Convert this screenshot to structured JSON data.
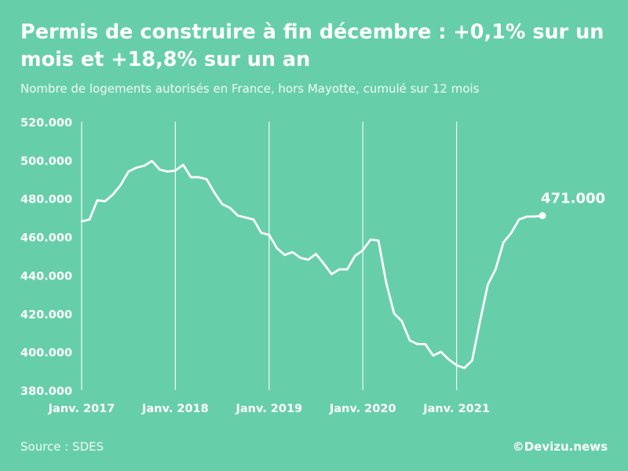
{
  "title": "Permis de construire à fin décembre : +0,1% sur un mois et +18,8% sur un an",
  "subtitle": "Nombre de logements autorisés en France, hors Mayotte, cumulé sur 12 mois",
  "source": "Source : SDES",
  "credit": "©Devizu.news",
  "colors": {
    "background": "#66cfa9",
    "line": "#ffffff",
    "grid": "#ffffff"
  },
  "chart_data": {
    "type": "line",
    "title": "Permis de construire à fin décembre : +0,1% sur un mois et +18,8% sur un an",
    "subtitle": "Nombre de logements autorisés en France, hors Mayotte, cumulé sur 12 mois",
    "xlabel": "",
    "ylabel": "",
    "ylim": [
      380000,
      520000
    ],
    "yticks": [
      {
        "value": 380000,
        "label": "380.000"
      },
      {
        "value": 400000,
        "label": "400.000"
      },
      {
        "value": 420000,
        "label": "420.000"
      },
      {
        "value": 440000,
        "label": "440.000"
      },
      {
        "value": 460000,
        "label": "460.000"
      },
      {
        "value": 480000,
        "label": "480.000"
      },
      {
        "value": 500000,
        "label": "500.000"
      },
      {
        "value": 520000,
        "label": "520.000"
      }
    ],
    "xticks": [
      {
        "value": "2017-01",
        "label": "Janv. 2017"
      },
      {
        "value": "2018-01",
        "label": "Janv. 2018"
      },
      {
        "value": "2019-01",
        "label": "Janv. 2019"
      },
      {
        "value": "2020-01",
        "label": "Janv. 2020"
      },
      {
        "value": "2021-01",
        "label": "Janv. 2021"
      }
    ],
    "grid": "vertical at January of each year",
    "x": [
      "2017-01",
      "2017-02",
      "2017-03",
      "2017-04",
      "2017-05",
      "2017-06",
      "2017-07",
      "2017-08",
      "2017-09",
      "2017-10",
      "2017-11",
      "2017-12",
      "2018-01",
      "2018-02",
      "2018-03",
      "2018-04",
      "2018-05",
      "2018-06",
      "2018-07",
      "2018-08",
      "2018-09",
      "2018-10",
      "2018-11",
      "2018-12",
      "2019-01",
      "2019-02",
      "2019-03",
      "2019-04",
      "2019-05",
      "2019-06",
      "2019-07",
      "2019-08",
      "2019-09",
      "2019-10",
      "2019-11",
      "2019-12",
      "2020-01",
      "2020-02",
      "2020-03",
      "2020-04",
      "2020-05",
      "2020-06",
      "2020-07",
      "2020-08",
      "2020-09",
      "2020-10",
      "2020-11",
      "2020-12",
      "2021-01",
      "2021-02",
      "2021-03",
      "2021-04",
      "2021-05",
      "2021-06",
      "2021-07",
      "2021-08",
      "2021-09",
      "2021-10",
      "2021-11",
      "2021-12"
    ],
    "series": [
      {
        "values": [
          468000,
          469000,
          479000,
          478500,
          482000,
          487000,
          494000,
          496000,
          497000,
          499500,
          495000,
          494000,
          494500,
          497500,
          491000,
          491000,
          490000,
          483000,
          477000,
          475000,
          471000,
          470000,
          469000,
          462000,
          461000,
          454000,
          450500,
          452000,
          449000,
          448000,
          451000,
          446000,
          440500,
          443000,
          443000,
          450000,
          453000,
          458500,
          458000,
          436000,
          420000,
          416000,
          406000,
          404000,
          404000,
          398000,
          400000,
          396000,
          393000,
          391500,
          395500,
          416000,
          435000,
          443000,
          457000,
          462000,
          469000,
          470500,
          470500,
          471000
        ]
      }
    ],
    "annotations": [
      {
        "x": "2021-12",
        "y": 471000,
        "text": "471.000"
      }
    ]
  }
}
